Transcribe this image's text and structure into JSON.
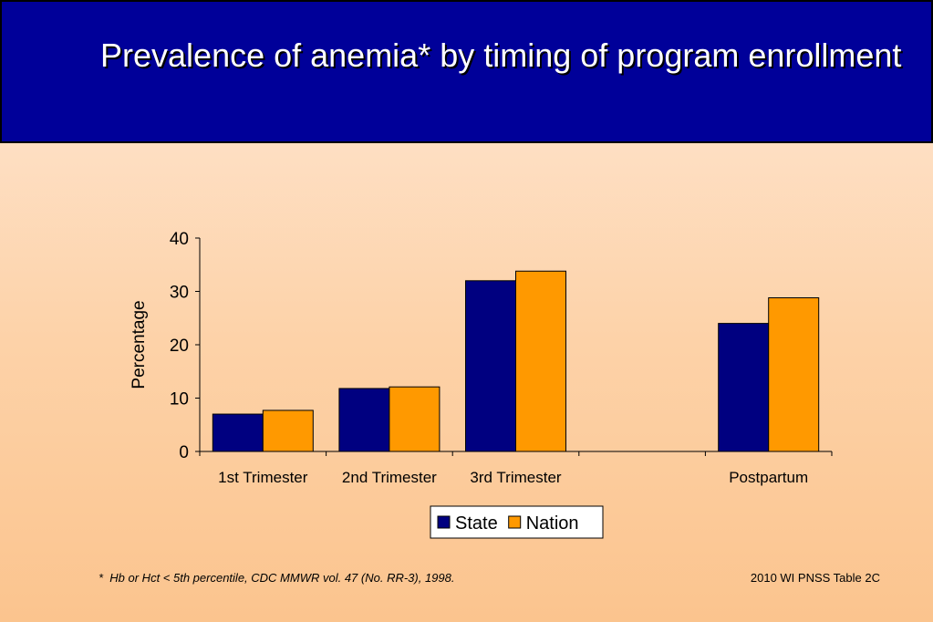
{
  "title": "Prevalence of anemia* by timing of program enrollment",
  "footnote": "*  Hb or Hct < 5th percentile, CDC MMWR vol. 47 (No. RR-3), 1998.",
  "source": "2010 WI PNSS Table 2C",
  "colors": {
    "title_bg": "#000099",
    "state": "#000080",
    "nation": "#ff9900"
  },
  "chart_data": {
    "type": "bar",
    "categories": [
      "1st Trimester",
      "2nd Trimester",
      "3rd Trimester",
      "",
      "Postpartum"
    ],
    "series": [
      {
        "name": "State",
        "values": [
          7,
          11.8,
          32,
          null,
          24
        ]
      },
      {
        "name": "Nation",
        "values": [
          7.7,
          12.1,
          33.8,
          null,
          28.8
        ]
      }
    ],
    "ylabel": "Percentage",
    "ylim": [
      0,
      40
    ],
    "yticks": [
      "0",
      "10",
      "20",
      "30",
      "40"
    ],
    "grid": false,
    "legend": "bottom-center"
  }
}
